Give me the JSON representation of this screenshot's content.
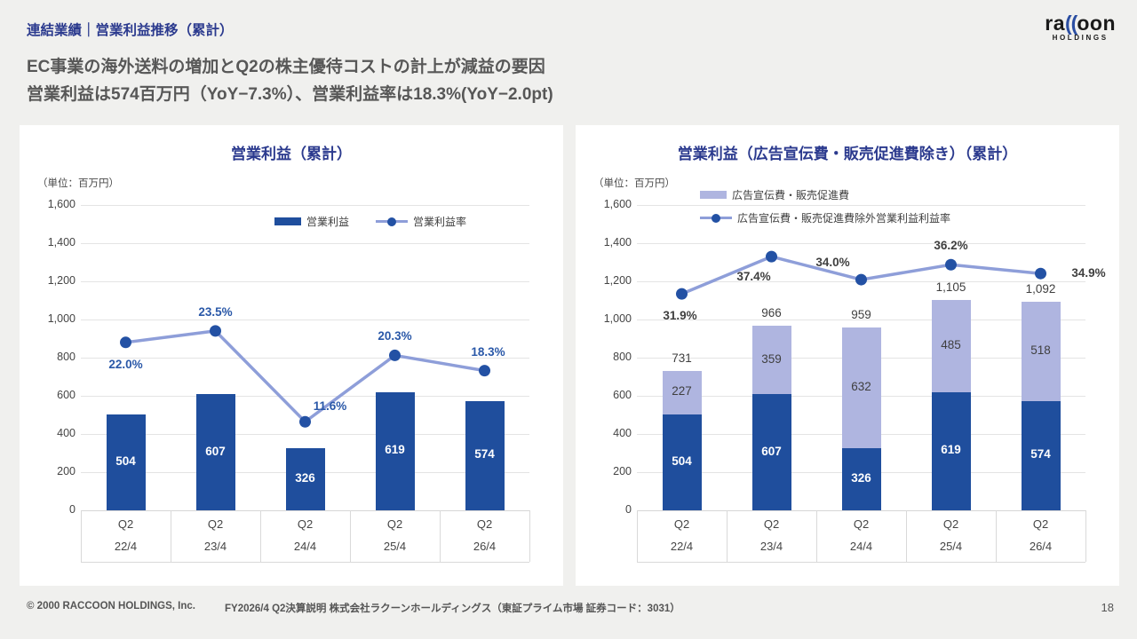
{
  "slide": {
    "kicker": "連結業績｜営業利益推移（累計）",
    "headline_line1": "EC事業の海外送料の増加とQ2の株主優待コストの計上が減益の要因",
    "headline_line2": "営業利益は574百万円（YoY−7.3%）、営業利益率は18.3%(YoY−2.0pt)",
    "page_number": "18"
  },
  "logo": {
    "prefix": "ra",
    "glyph": "((",
    "suffix": "oon",
    "subtext": "HOLDINGS"
  },
  "footer": {
    "copyright": "© 2000 RACCOON HOLDINGS, Inc.",
    "deck_title": "FY2026/4 Q2決算説明 株式会社ラクーンホールディングス（東証プライム市場 証券コード：3031）"
  },
  "colors": {
    "background": "#F0F0EE",
    "card": "#FFFFFF",
    "accent_navy": "#2B3A8E",
    "bar_blue": "#1F4E9D",
    "bar_light_purple": "#AFB5E0",
    "line_periwinkle": "#8E9ED9",
    "marker_blue": "#2351A4",
    "pct_label_blue": "#2A58A8",
    "text_dark": "#3F3F3F",
    "text_gray": "#575757",
    "grid": "#E4E4E4",
    "logo_blue": "#2B4EA2"
  },
  "chart_data": [
    {
      "type": "bar+line",
      "title": "営業利益（累計）",
      "unit_label": "（単位：百万円）",
      "grid": true,
      "y_axis": {
        "min": 0,
        "max": 1600,
        "step": 200,
        "tick_labels": [
          "1,600",
          "1,400",
          "1,200",
          "1,000",
          "800",
          "600",
          "400",
          "200",
          "0"
        ]
      },
      "categories": [
        {
          "line1": "Q2",
          "line2": "22/4"
        },
        {
          "line1": "Q2",
          "line2": "23/4"
        },
        {
          "line1": "Q2",
          "line2": "24/4"
        },
        {
          "line1": "Q2",
          "line2": "25/4"
        },
        {
          "line1": "Q2",
          "line2": "26/4"
        }
      ],
      "legend": [
        {
          "label": "営業利益",
          "swatch": "bar",
          "color": "#1F4E9D"
        },
        {
          "label": "営業利益率",
          "swatch": "line",
          "color": "#8E9ED9",
          "marker_color": "#2351A4"
        }
      ],
      "series": [
        {
          "name": "営業利益",
          "type": "bar",
          "color": "#1F4E9D",
          "label_color": "#FFFFFF",
          "values": [
            504,
            607,
            326,
            619,
            574
          ],
          "labels": [
            "504",
            "607",
            "326",
            "619",
            "574"
          ]
        },
        {
          "name": "営業利益率",
          "type": "line",
          "color": "#8E9ED9",
          "marker_color": "#2351A4",
          "values_pct": [
            22.0,
            23.5,
            11.6,
            20.3,
            18.3
          ],
          "labels": [
            "22.0%",
            "23.5%",
            "11.6%",
            "20.3%",
            "18.3%"
          ],
          "secondary_axis_max": 40
        }
      ]
    },
    {
      "type": "stacked-bar+line",
      "title": "営業利益（広告宣伝費・販売促進費除き）（累計）",
      "unit_label": "（単位：百万円）",
      "grid": true,
      "y_axis": {
        "min": 0,
        "max": 1600,
        "step": 200,
        "tick_labels": [
          "1,600",
          "1,400",
          "1,200",
          "1,000",
          "800",
          "600",
          "400",
          "200",
          "0"
        ]
      },
      "categories": [
        {
          "line1": "Q2",
          "line2": "22/4"
        },
        {
          "line1": "Q2",
          "line2": "23/4"
        },
        {
          "line1": "Q2",
          "line2": "24/4"
        },
        {
          "line1": "Q2",
          "line2": "25/4"
        },
        {
          "line1": "Q2",
          "line2": "26/4"
        }
      ],
      "legend": [
        {
          "label": "広告宣伝費・販売促進費",
          "swatch": "bar",
          "color": "#AFB5E0"
        },
        {
          "label": "広告宣伝費・販売促進費除外営業利益利益率",
          "swatch": "line",
          "color": "#8E9ED9",
          "marker_color": "#2351A4"
        }
      ],
      "series": [
        {
          "name": "営業利益",
          "type": "bar",
          "color": "#1F4E9D",
          "label_color": "#FFFFFF",
          "values": [
            504,
            607,
            326,
            619,
            574
          ],
          "labels": [
            "504",
            "607",
            "326",
            "619",
            "574"
          ]
        },
        {
          "name": "広告宣伝費・販売促進費",
          "type": "bar",
          "color": "#AFB5E0",
          "label_color": "#3F3F3F",
          "values": [
            227,
            359,
            632,
            485,
            518
          ],
          "labels": [
            "227",
            "359",
            "632",
            "485",
            "518"
          ]
        },
        {
          "name": "広告宣伝費・販売促進費除外営業利益利益率",
          "type": "line",
          "color": "#8E9ED9",
          "marker_color": "#2351A4",
          "values_pct": [
            31.9,
            37.4,
            34.0,
            36.2,
            34.9
          ],
          "labels": [
            "31.9%",
            "37.4%",
            "34.0%",
            "36.2%",
            "34.9%"
          ],
          "secondary_axis_max": 45
        }
      ],
      "totals": [
        731,
        966,
        959,
        1105,
        1092
      ],
      "totals_labels": [
        "731",
        "966",
        "959",
        "1,105",
        "1,092"
      ]
    }
  ]
}
